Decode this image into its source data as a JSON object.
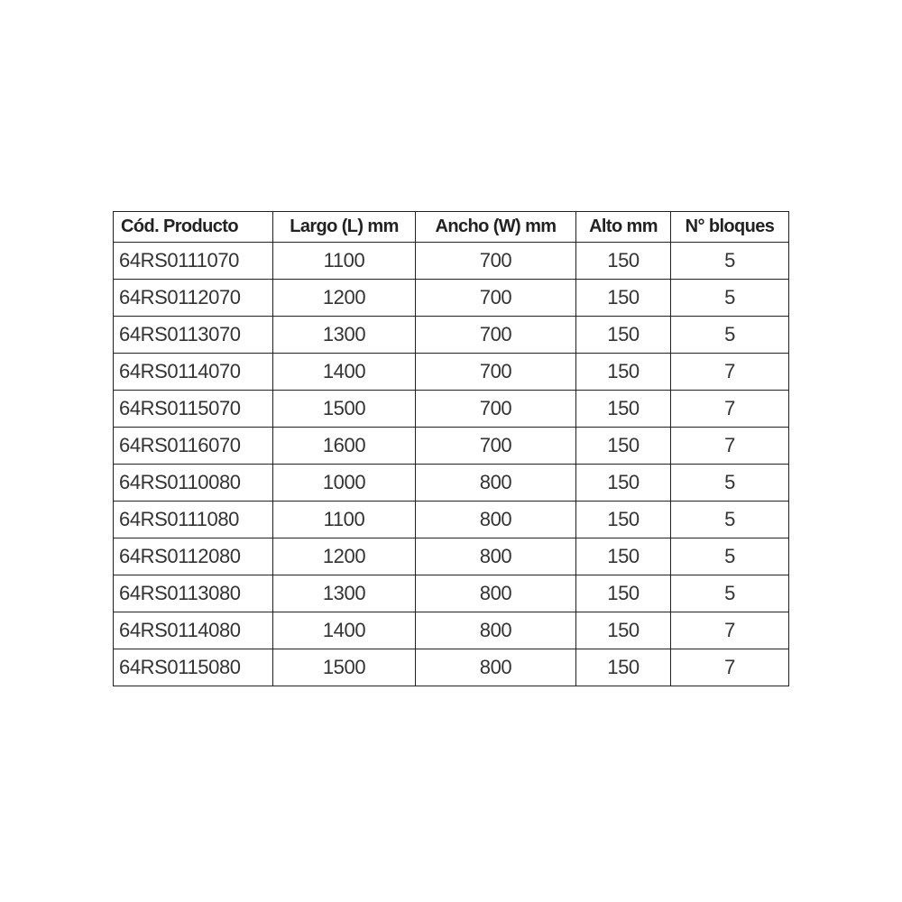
{
  "table": {
    "headers": [
      "Cód. Producto",
      "Largo (L) mm",
      "Ancho (W) mm",
      "Alto mm",
      "N° bloques"
    ],
    "rows": [
      [
        "64RS0111070",
        "1100",
        "700",
        "150",
        "5"
      ],
      [
        "64RS0112070",
        "1200",
        "700",
        "150",
        "5"
      ],
      [
        "64RS0113070",
        "1300",
        "700",
        "150",
        "5"
      ],
      [
        "64RS0114070",
        "1400",
        "700",
        "150",
        "7"
      ],
      [
        "64RS0115070",
        "1500",
        "700",
        "150",
        "7"
      ],
      [
        "64RS0116070",
        "1600",
        "700",
        "150",
        "7"
      ],
      [
        "64RS0110080",
        "1000",
        "800",
        "150",
        "5"
      ],
      [
        "64RS0111080",
        "1100",
        "800",
        "150",
        "5"
      ],
      [
        "64RS0112080",
        "1200",
        "800",
        "150",
        "5"
      ],
      [
        "64RS0113080",
        "1300",
        "800",
        "150",
        "5"
      ],
      [
        "64RS0114080",
        "1400",
        "800",
        "150",
        "7"
      ],
      [
        "64RS0115080",
        "1500",
        "800",
        "150",
        "7"
      ]
    ]
  }
}
